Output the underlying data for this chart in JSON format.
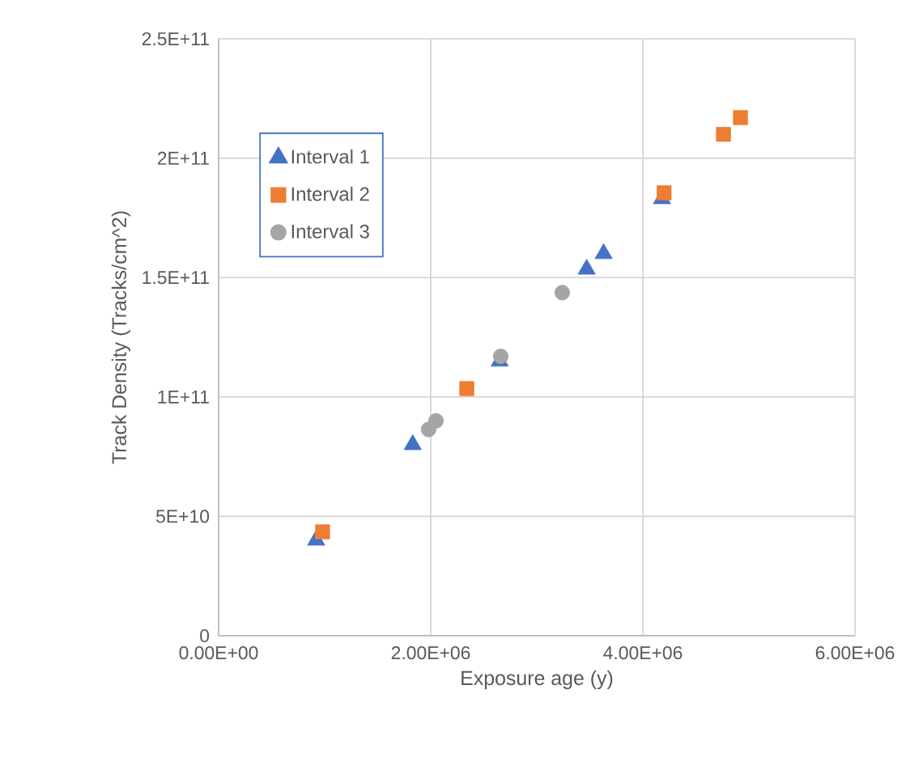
{
  "chart_data": {
    "type": "scatter",
    "xlabel": "Exposure age (y)",
    "ylabel": "Track Density (Tracks/cm^2)",
    "xlim": [
      0,
      6000000
    ],
    "ylim": [
      0,
      250000000000
    ],
    "xticks": [
      {
        "value": 0,
        "label": "0.00E+00"
      },
      {
        "value": 2000000,
        "label": "2.00E+06"
      },
      {
        "value": 4000000,
        "label": "4.00E+06"
      },
      {
        "value": 6000000,
        "label": "6.00E+06"
      }
    ],
    "yticks": [
      0,
      {
        "value": 50000000000,
        "label": "5E+10"
      },
      {
        "value": 100000000000,
        "label": "1E+11"
      },
      {
        "value": 150000000000,
        "label": "1.5E+11"
      },
      {
        "value": 200000000000,
        "label": "2E+11"
      },
      {
        "value": 250000000000,
        "label": "2.5E+11"
      }
    ],
    "grid": true,
    "legend": "top left",
    "series": [
      {
        "name": "Interval 1",
        "color": "#4472c4",
        "marker": "triangle",
        "x": [
          920000,
          1830000,
          2650000,
          3470000,
          3630000,
          4180000
        ],
        "values": [
          40000000000,
          80000000000,
          115000000000,
          153500000000,
          160000000000,
          183000000000
        ]
      },
      {
        "name": "Interval 2",
        "color": "#ed7d31",
        "marker": "square",
        "x": [
          980000,
          2340000,
          4200000,
          4760000,
          4920000
        ],
        "values": [
          43500000000,
          103500000000,
          185500000000,
          210000000000,
          217000000000
        ]
      },
      {
        "name": "Interval 3",
        "color": "#a5a5a5",
        "marker": "circle",
        "x": [
          1980000,
          2050000,
          2660000,
          3240000
        ],
        "values": [
          86400000000,
          90000000000,
          117000000000,
          143700000000
        ]
      }
    ]
  }
}
